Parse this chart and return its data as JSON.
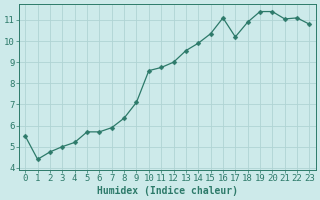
{
  "x": [
    0,
    1,
    2,
    3,
    4,
    5,
    6,
    7,
    8,
    9,
    10,
    11,
    12,
    13,
    14,
    15,
    16,
    17,
    18,
    19,
    20,
    21,
    22,
    23
  ],
  "y": [
    5.5,
    4.4,
    4.75,
    5.0,
    5.2,
    5.7,
    5.7,
    5.9,
    6.35,
    7.1,
    8.6,
    8.75,
    9.0,
    9.55,
    9.9,
    10.35,
    11.1,
    10.2,
    10.9,
    11.4,
    11.4,
    11.05,
    11.1,
    10.8
  ],
  "line_color": "#2d7a6a",
  "marker": "D",
  "marker_size": 2.5,
  "bg_color": "#cdeaea",
  "grid_color": "#b0d4d4",
  "xlabel": "Humidex (Indice chaleur)",
  "xlim": [
    -0.5,
    23.5
  ],
  "ylim": [
    3.9,
    11.75
  ],
  "yticks": [
    4,
    5,
    6,
    7,
    8,
    9,
    10,
    11
  ],
  "xticks": [
    0,
    1,
    2,
    3,
    4,
    5,
    6,
    7,
    8,
    9,
    10,
    11,
    12,
    13,
    14,
    15,
    16,
    17,
    18,
    19,
    20,
    21,
    22,
    23
  ],
  "tick_color": "#2d7a6a",
  "axis_color": "#2d7a6a",
  "font_color": "#2d7a6a",
  "xlabel_fontsize": 7,
  "tick_fontsize": 6.5
}
